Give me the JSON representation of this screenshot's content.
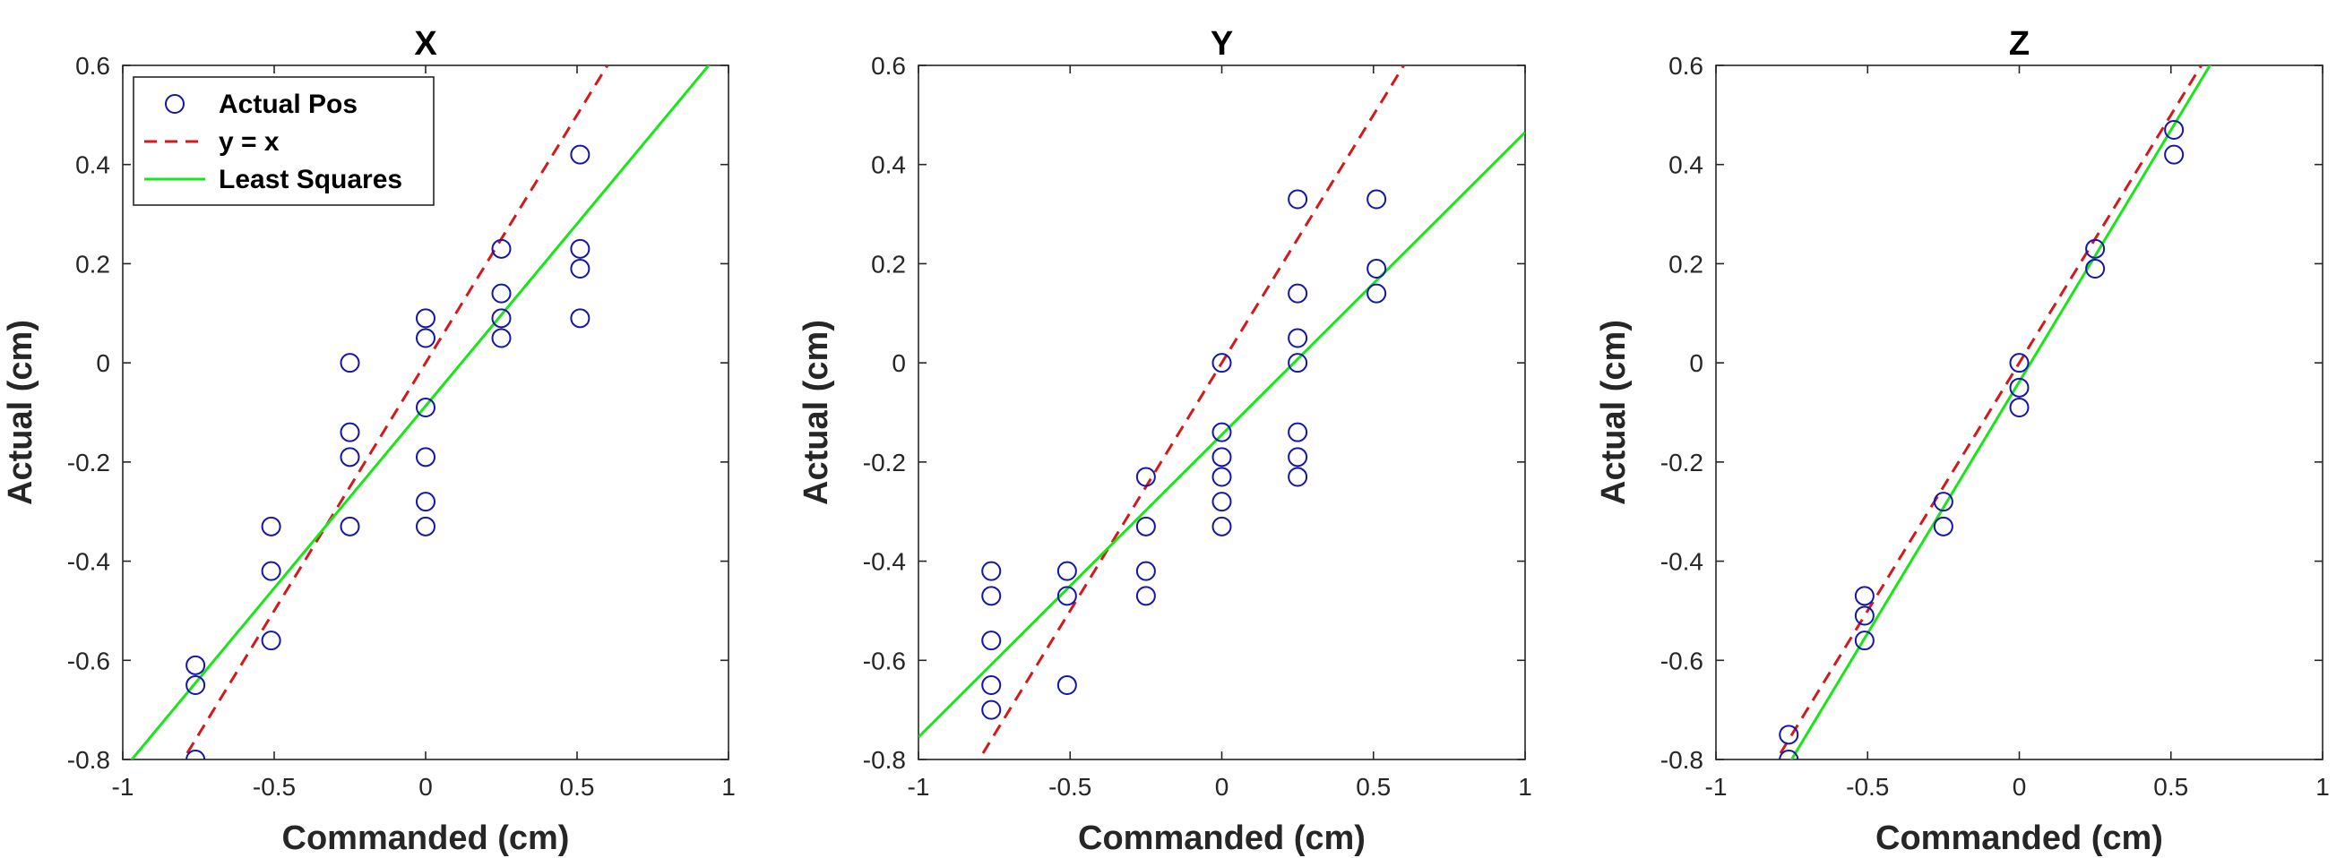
{
  "figure": {
    "marker_color": "#1515a8",
    "identity_color": "#d2191c",
    "fit_color": "#19e619",
    "axis_color": "#262626"
  },
  "legend": {
    "placement": "top-left",
    "entries": [
      "Actual Pos",
      "y = x",
      "Least Squares"
    ]
  },
  "chart_data": [
    {
      "type": "scatter",
      "title": "X",
      "xlabel": "Commanded (cm)",
      "ylabel": "Actual (cm)",
      "xlim": [
        -1,
        1
      ],
      "ylim": [
        -0.8,
        0.6
      ],
      "xticks": [
        "-1",
        "-0.5",
        "0",
        "0.5",
        "1"
      ],
      "yticks": [
        "-0.8",
        "-0.6",
        "-0.4",
        "-0.2",
        "0",
        "0.2",
        "0.4",
        "0.6"
      ],
      "points": [
        [
          -0.76,
          -0.61
        ],
        [
          -0.76,
          -0.65
        ],
        [
          -0.76,
          -0.8
        ],
        [
          -0.51,
          -0.33
        ],
        [
          -0.51,
          -0.42
        ],
        [
          -0.51,
          -0.56
        ],
        [
          -0.25,
          0.0
        ],
        [
          -0.25,
          -0.14
        ],
        [
          -0.25,
          -0.19
        ],
        [
          -0.25,
          -0.33
        ],
        [
          0.0,
          0.09
        ],
        [
          0.0,
          0.05
        ],
        [
          0.0,
          -0.09
        ],
        [
          0.0,
          -0.19
        ],
        [
          0.0,
          -0.28
        ],
        [
          0.0,
          -0.33
        ],
        [
          0.25,
          0.23
        ],
        [
          0.25,
          0.14
        ],
        [
          0.25,
          0.09
        ],
        [
          0.25,
          0.05
        ],
        [
          0.51,
          0.42
        ],
        [
          0.51,
          0.23
        ],
        [
          0.51,
          0.19
        ],
        [
          0.51,
          0.09
        ]
      ],
      "least_squares": {
        "slope": 0.735,
        "intercept": -0.087
      },
      "has_legend": true
    },
    {
      "type": "scatter",
      "title": "Y",
      "xlabel": "Commanded (cm)",
      "ylabel": "Actual (cm)",
      "xlim": [
        -1,
        1
      ],
      "ylim": [
        -0.8,
        0.6
      ],
      "xticks": [
        "-1",
        "-0.5",
        "0",
        "0.5",
        "1"
      ],
      "yticks": [
        "-0.8",
        "-0.6",
        "-0.4",
        "-0.2",
        "0",
        "0.2",
        "0.4",
        "0.6"
      ],
      "points": [
        [
          -0.76,
          -0.42
        ],
        [
          -0.76,
          -0.47
        ],
        [
          -0.76,
          -0.56
        ],
        [
          -0.76,
          -0.65
        ],
        [
          -0.76,
          -0.7
        ],
        [
          -0.51,
          -0.42
        ],
        [
          -0.51,
          -0.47
        ],
        [
          -0.51,
          -0.65
        ],
        [
          -0.25,
          -0.23
        ],
        [
          -0.25,
          -0.33
        ],
        [
          -0.25,
          -0.42
        ],
        [
          -0.25,
          -0.47
        ],
        [
          0.0,
          0.0
        ],
        [
          0.0,
          -0.14
        ],
        [
          0.0,
          -0.19
        ],
        [
          0.0,
          -0.23
        ],
        [
          0.0,
          -0.28
        ],
        [
          0.0,
          -0.33
        ],
        [
          0.25,
          0.33
        ],
        [
          0.25,
          0.14
        ],
        [
          0.25,
          0.05
        ],
        [
          0.25,
          0.0
        ],
        [
          0.25,
          -0.14
        ],
        [
          0.25,
          -0.19
        ],
        [
          0.25,
          -0.23
        ],
        [
          0.51,
          0.33
        ],
        [
          0.51,
          0.19
        ],
        [
          0.51,
          0.14
        ]
      ],
      "least_squares": {
        "slope": 0.61,
        "intercept": -0.145
      },
      "has_legend": false
    },
    {
      "type": "scatter",
      "title": "Z",
      "xlabel": "Commanded (cm)",
      "ylabel": "Actual (cm)",
      "xlim": [
        -1,
        1
      ],
      "ylim": [
        -0.8,
        0.6
      ],
      "xticks": [
        "-1",
        "-0.5",
        "0",
        "0.5",
        "1"
      ],
      "yticks": [
        "-0.8",
        "-0.6",
        "-0.4",
        "-0.2",
        "0",
        "0.2",
        "0.4",
        "0.6"
      ],
      "points": [
        [
          -0.76,
          -0.75
        ],
        [
          -0.76,
          -0.8
        ],
        [
          -0.51,
          -0.47
        ],
        [
          -0.51,
          -0.51
        ],
        [
          -0.51,
          -0.56
        ],
        [
          -0.25,
          -0.28
        ],
        [
          -0.25,
          -0.33
        ],
        [
          0.0,
          0.0
        ],
        [
          0.0,
          -0.05
        ],
        [
          0.0,
          -0.09
        ],
        [
          0.25,
          0.23
        ],
        [
          0.25,
          0.19
        ],
        [
          0.51,
          0.47
        ],
        [
          0.51,
          0.42
        ]
      ],
      "least_squares": {
        "slope": 1.015,
        "intercept": -0.038
      },
      "has_legend": false
    }
  ]
}
